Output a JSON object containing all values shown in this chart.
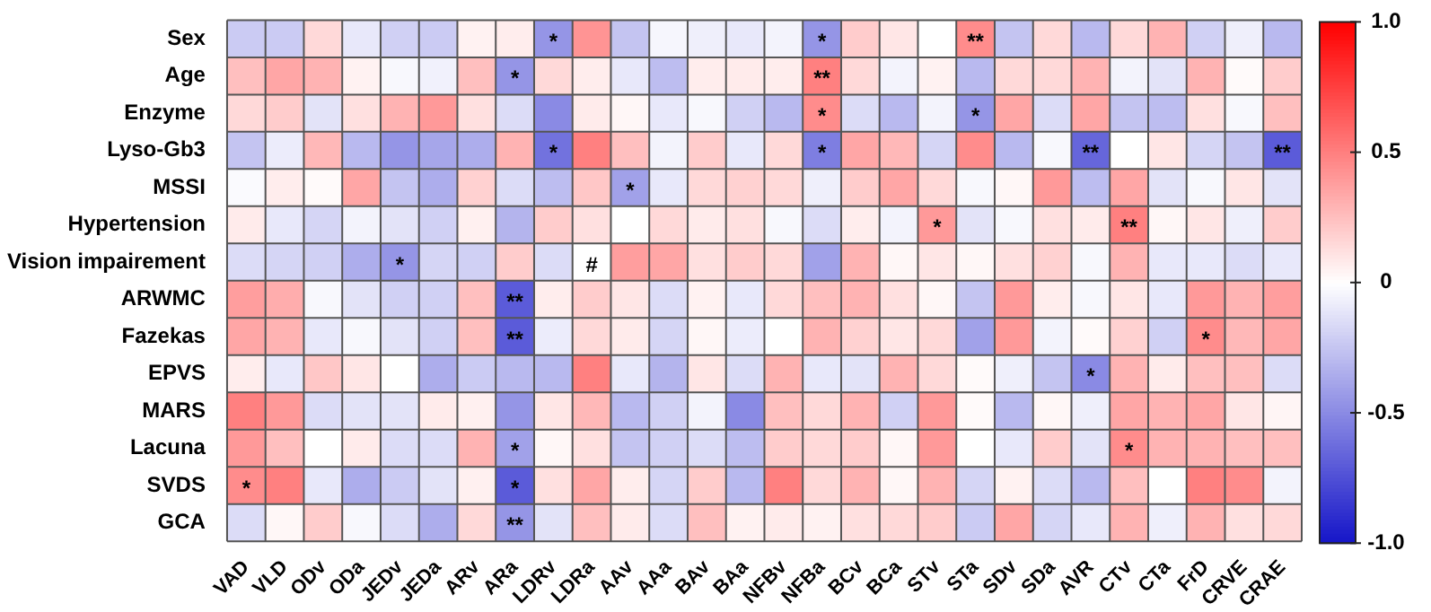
{
  "chart_data": {
    "type": "heatmap",
    "categories": [
      "VAD",
      "VLD",
      "ODv",
      "ODa",
      "JEDv",
      "JEDa",
      "ARv",
      "ARa",
      "LDRv",
      "LDRa",
      "AAv",
      "AAa",
      "BAv",
      "BAa",
      "NFBv",
      "NFBa",
      "BCv",
      "BCa",
      "STv",
      "STa",
      "SDv",
      "SDa",
      "AVR",
      "CTv",
      "CTa",
      "FrD",
      "CRVE",
      "CRAE"
    ],
    "y_categories": [
      "Sex",
      "Age",
      "Enzyme",
      "Lyso-Gb3",
      "MSSI",
      "Hypertension",
      "Vision impairement",
      "ARWMC",
      "Fazekas",
      "EPVS",
      "MARS",
      "Lacuna",
      "SVDS",
      "GCA"
    ],
    "cells": [
      [
        -0.22,
        -0.22,
        0.15,
        -0.1,
        -0.2,
        -0.22,
        0.05,
        0.07,
        -0.45,
        0.42,
        -0.25,
        -0.04,
        -0.07,
        -0.1,
        -0.05,
        -0.45,
        0.2,
        0.1,
        0,
        0.45,
        -0.25,
        0.15,
        -0.3,
        0.15,
        0.3,
        -0.2,
        -0.07,
        -0.3
      ],
      [
        0.25,
        0.35,
        0.3,
        0.05,
        -0.03,
        -0.06,
        0.25,
        -0.45,
        0.15,
        0.07,
        -0.1,
        -0.28,
        0.07,
        0.08,
        0.07,
        0.5,
        0.15,
        -0.05,
        0.05,
        -0.3,
        0.15,
        0.15,
        0.3,
        -0.05,
        -0.12,
        0.3,
        0.02,
        0.2
      ],
      [
        0.15,
        0.2,
        -0.12,
        0.12,
        0.3,
        0.4,
        0.12,
        -0.15,
        -0.5,
        0.08,
        0.03,
        -0.1,
        -0.03,
        -0.2,
        -0.3,
        0.45,
        -0.15,
        -0.3,
        -0.05,
        -0.45,
        0.35,
        -0.15,
        0.35,
        -0.25,
        -0.28,
        0.12,
        -0.03,
        0.25
      ],
      [
        -0.25,
        -0.08,
        0.28,
        -0.3,
        -0.45,
        -0.38,
        -0.35,
        0.3,
        -0.6,
        0.5,
        0.25,
        -0.05,
        0.2,
        -0.1,
        0.15,
        -0.55,
        0.35,
        0.28,
        -0.18,
        0.45,
        -0.3,
        -0.03,
        -0.65,
        0,
        0.1,
        -0.18,
        -0.25,
        -0.7
      ],
      [
        -0.02,
        0.07,
        0.02,
        0.35,
        -0.25,
        -0.35,
        0.18,
        -0.15,
        -0.28,
        0.22,
        -0.4,
        -0.1,
        0.15,
        0.18,
        0.15,
        -0.07,
        0.2,
        0.35,
        0.15,
        -0.03,
        0.03,
        0.4,
        -0.28,
        0.35,
        -0.12,
        -0.03,
        0.1,
        -0.12
      ],
      [
        0.08,
        -0.1,
        -0.18,
        -0.05,
        -0.12,
        -0.2,
        0.06,
        -0.32,
        0.2,
        0.12,
        0,
        0.15,
        0.08,
        0.12,
        -0.03,
        -0.15,
        0.07,
        -0.05,
        0.4,
        -0.12,
        -0.03,
        0.12,
        0.08,
        0.5,
        0.03,
        0.1,
        -0.07,
        0.2
      ],
      [
        -0.15,
        -0.18,
        -0.2,
        -0.35,
        -0.45,
        -0.18,
        -0.2,
        0.2,
        -0.15,
        0,
        0.38,
        0.35,
        0.12,
        0.2,
        0.15,
        -0.4,
        0.3,
        0.03,
        0.1,
        0.03,
        0.12,
        0.18,
        -0.03,
        0.3,
        -0.1,
        -0.1,
        -0.15,
        -0.1
      ],
      [
        0.38,
        0.32,
        -0.03,
        -0.12,
        -0.2,
        -0.2,
        0.25,
        -0.7,
        0.07,
        0.2,
        0.1,
        -0.15,
        0.05,
        -0.1,
        0.15,
        0.25,
        0.3,
        0.12,
        0.03,
        -0.25,
        0.4,
        0.07,
        -0.03,
        0.1,
        -0.1,
        0.4,
        0.3,
        0.38
      ],
      [
        0.35,
        0.3,
        -0.1,
        -0.03,
        -0.12,
        -0.2,
        0.25,
        -0.7,
        -0.08,
        0.15,
        0.08,
        -0.18,
        0.03,
        -0.08,
        0,
        0.3,
        0.18,
        0.1,
        0.15,
        -0.4,
        0.4,
        -0.05,
        0.02,
        0.18,
        -0.2,
        0.45,
        0.28,
        0.35
      ],
      [
        0.07,
        -0.1,
        0.22,
        0.1,
        0,
        -0.35,
        -0.22,
        -0.3,
        -0.3,
        0.5,
        -0.1,
        -0.32,
        0.1,
        -0.15,
        0.3,
        -0.1,
        -0.12,
        0.3,
        0.15,
        0.02,
        -0.07,
        -0.25,
        -0.5,
        0.3,
        0.08,
        0.25,
        0.25,
        -0.15
      ],
      [
        0.5,
        0.4,
        -0.15,
        -0.12,
        -0.12,
        0.08,
        0.06,
        -0.45,
        0.1,
        0.28,
        -0.3,
        -0.2,
        -0.05,
        -0.5,
        0.25,
        0.15,
        0.3,
        -0.2,
        0.4,
        0.02,
        -0.3,
        0.03,
        -0.07,
        0.35,
        0.3,
        0.35,
        0.1,
        0.04
      ],
      [
        0.4,
        0.25,
        0,
        0.08,
        -0.15,
        -0.15,
        0.3,
        -0.4,
        0.03,
        0.12,
        -0.25,
        -0.2,
        -0.15,
        -0.28,
        0.2,
        0.15,
        0.2,
        0.03,
        0.4,
        0,
        -0.1,
        0.2,
        -0.12,
        0.45,
        0.3,
        0.3,
        0.25,
        0.25
      ],
      [
        0.45,
        0.5,
        -0.1,
        -0.35,
        -0.22,
        -0.12,
        0.06,
        -0.7,
        0.12,
        0.35,
        0.07,
        -0.18,
        0.2,
        -0.3,
        0.5,
        0.15,
        0.3,
        0.03,
        0.3,
        -0.18,
        0.05,
        -0.15,
        -0.3,
        0.25,
        0,
        0.5,
        0.45,
        -0.05
      ],
      [
        -0.15,
        0.03,
        0.2,
        -0.03,
        -0.15,
        -0.35,
        0.15,
        -0.45,
        -0.12,
        0.25,
        0.08,
        -0.15,
        0.25,
        0.05,
        0.08,
        0.05,
        0.12,
        0.15,
        0.2,
        -0.22,
        0.35,
        -0.18,
        -0.1,
        0.3,
        -0.07,
        0.3,
        0.12,
        0.15
      ]
    ],
    "cell_labels": [
      [
        null,
        null,
        null,
        null,
        null,
        null,
        null,
        null,
        "*",
        null,
        null,
        null,
        null,
        null,
        null,
        "*",
        null,
        null,
        null,
        "**",
        null,
        null,
        null,
        null,
        null,
        null,
        null,
        null
      ],
      [
        null,
        null,
        null,
        null,
        null,
        null,
        null,
        "*",
        null,
        null,
        null,
        null,
        null,
        null,
        null,
        "**",
        null,
        null,
        null,
        null,
        null,
        null,
        null,
        null,
        null,
        null,
        null,
        null
      ],
      [
        null,
        null,
        null,
        null,
        null,
        null,
        null,
        null,
        null,
        null,
        null,
        null,
        null,
        null,
        null,
        "*",
        null,
        null,
        null,
        "*",
        null,
        null,
        null,
        null,
        null,
        null,
        null,
        null
      ],
      [
        null,
        null,
        null,
        null,
        null,
        null,
        null,
        null,
        "*",
        null,
        null,
        null,
        null,
        null,
        null,
        "*",
        null,
        null,
        null,
        null,
        null,
        null,
        "**",
        null,
        null,
        null,
        null,
        "**"
      ],
      [
        null,
        null,
        null,
        null,
        null,
        null,
        null,
        null,
        null,
        null,
        "*",
        null,
        null,
        null,
        null,
        null,
        null,
        null,
        null,
        null,
        null,
        null,
        null,
        null,
        null,
        null,
        null,
        null
      ],
      [
        null,
        null,
        null,
        null,
        null,
        null,
        null,
        null,
        null,
        null,
        null,
        null,
        null,
        null,
        null,
        null,
        null,
        null,
        "*",
        null,
        null,
        null,
        null,
        "**",
        null,
        null,
        null,
        null
      ],
      [
        null,
        null,
        null,
        null,
        "*",
        null,
        null,
        null,
        null,
        "#",
        null,
        null,
        null,
        null,
        null,
        null,
        null,
        null,
        null,
        null,
        null,
        null,
        null,
        null,
        null,
        null,
        null,
        null
      ],
      [
        null,
        null,
        null,
        null,
        null,
        null,
        null,
        "**",
        null,
        null,
        null,
        null,
        null,
        null,
        null,
        null,
        null,
        null,
        null,
        null,
        null,
        null,
        null,
        null,
        null,
        null,
        null,
        null
      ],
      [
        null,
        null,
        null,
        null,
        null,
        null,
        null,
        "**",
        null,
        null,
        null,
        null,
        null,
        null,
        null,
        null,
        null,
        null,
        null,
        null,
        null,
        null,
        null,
        null,
        null,
        "*",
        null,
        null
      ],
      [
        null,
        null,
        null,
        null,
        null,
        null,
        null,
        null,
        null,
        null,
        null,
        null,
        null,
        null,
        null,
        null,
        null,
        null,
        null,
        null,
        null,
        null,
        "*",
        null,
        null,
        null,
        null,
        null
      ],
      [
        null,
        null,
        null,
        null,
        null,
        null,
        null,
        null,
        null,
        null,
        null,
        null,
        null,
        null,
        null,
        null,
        null,
        null,
        null,
        null,
        null,
        null,
        null,
        null,
        null,
        null,
        null,
        null
      ],
      [
        null,
        null,
        null,
        null,
        null,
        null,
        null,
        "*",
        null,
        null,
        null,
        null,
        null,
        null,
        null,
        null,
        null,
        null,
        null,
        null,
        null,
        null,
        null,
        "*",
        null,
        null,
        null,
        null
      ],
      [
        "*",
        null,
        null,
        null,
        null,
        null,
        null,
        "*",
        null,
        null,
        null,
        null,
        null,
        null,
        null,
        null,
        null,
        null,
        null,
        null,
        null,
        null,
        null,
        null,
        null,
        null,
        null,
        null
      ],
      [
        null,
        null,
        null,
        null,
        null,
        null,
        null,
        "**",
        null,
        null,
        null,
        null,
        null,
        null,
        null,
        null,
        null,
        null,
        null,
        null,
        null,
        null,
        null,
        null,
        null,
        null,
        null,
        null
      ]
    ],
    "clim": [
      -1,
      1
    ],
    "cticks": [
      {
        "value": -1,
        "label": "-1.0"
      },
      {
        "value": -0.5,
        "label": "-0.5"
      },
      0,
      {
        "value": 0.5,
        "label": "0.5"
      },
      {
        "value": 1,
        "label": "1.0"
      }
    ]
  }
}
